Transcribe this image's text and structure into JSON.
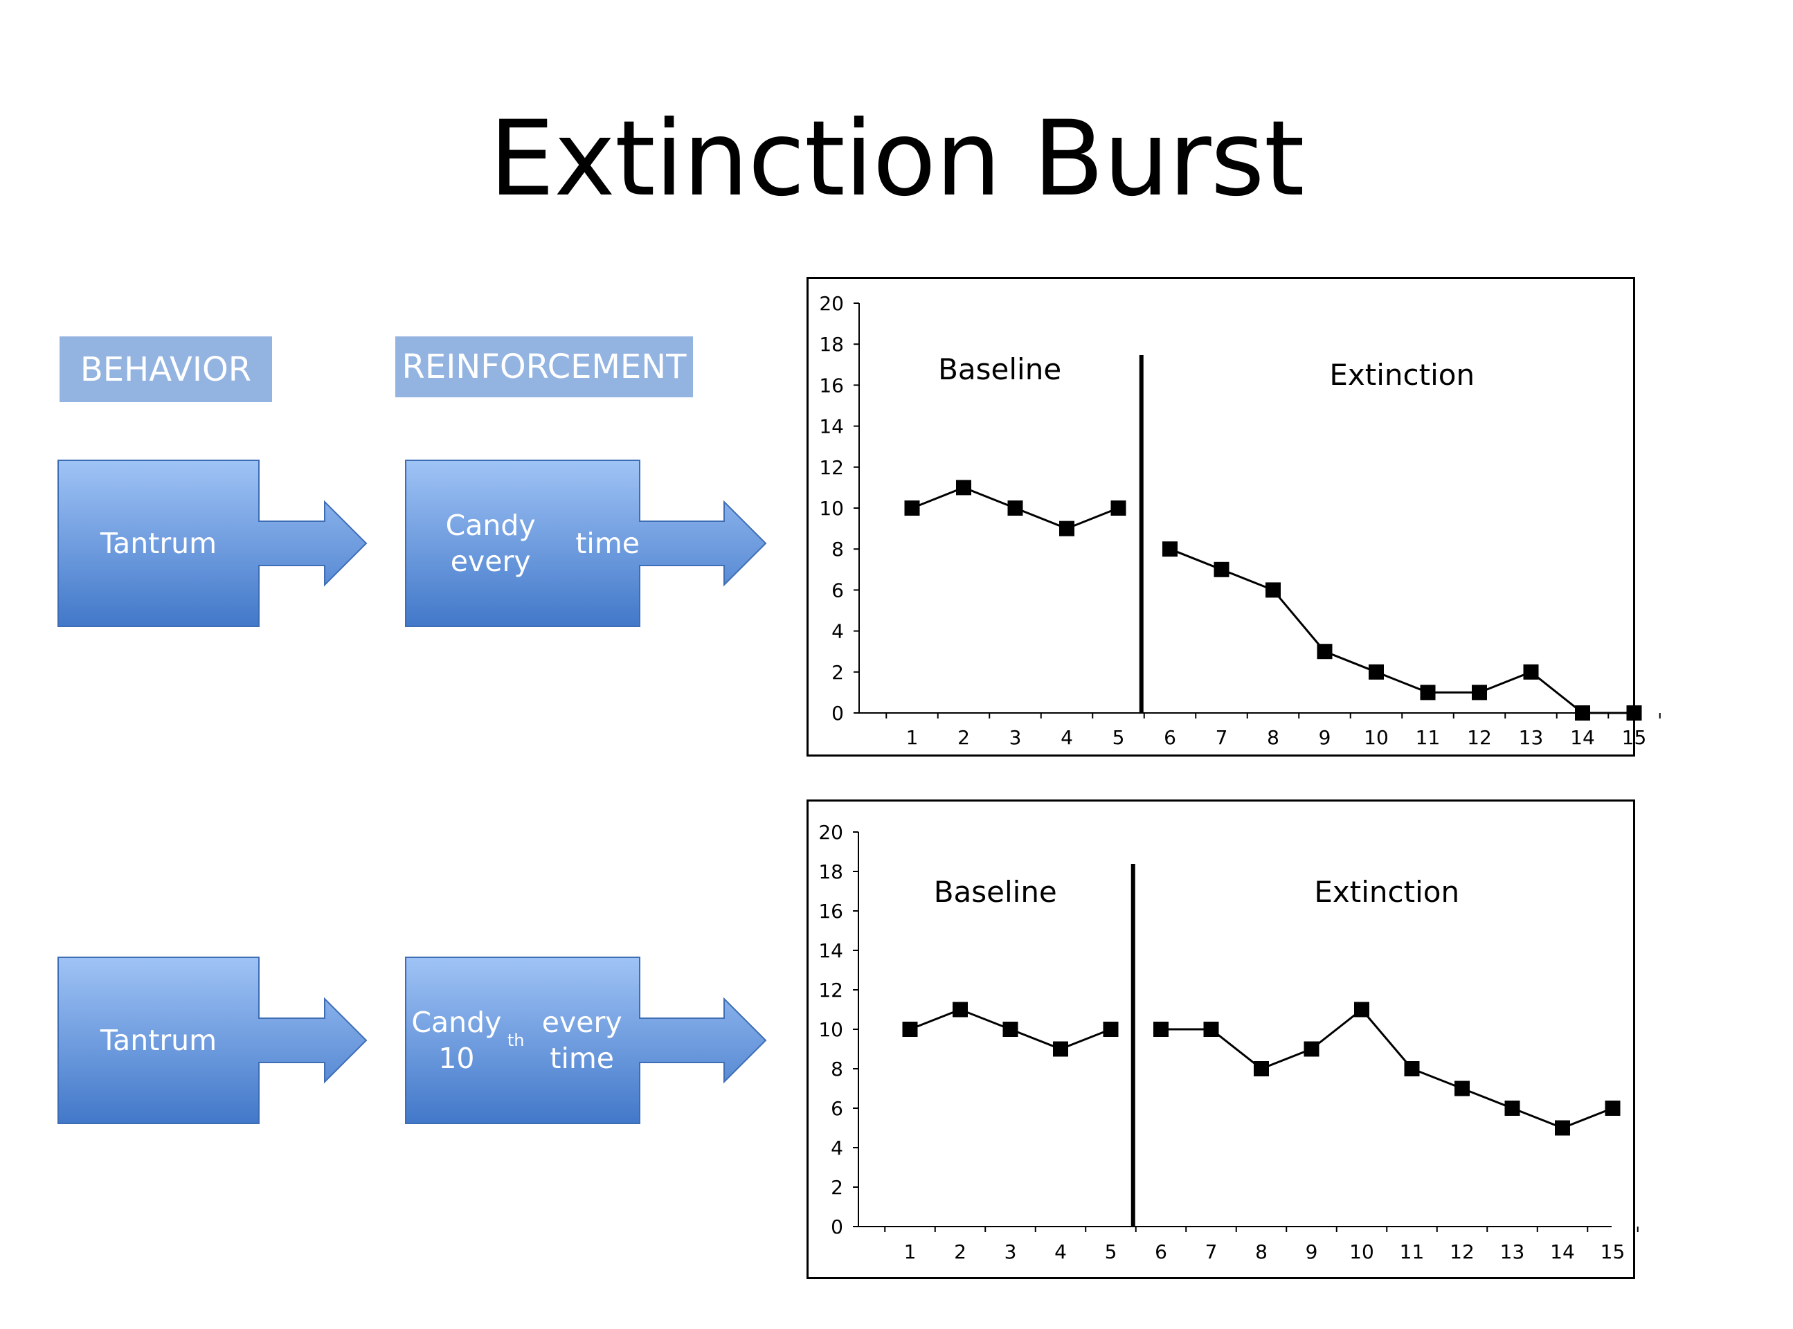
{
  "slide": {
    "title": "Extinction Burst",
    "headers": {
      "behavior": "BEHAVIOR",
      "reinforcement": "REINFORCEMENT"
    },
    "rows": [
      {
        "behavior": "Tantrum",
        "reinforcement_lines": [
          "Candy every",
          "time"
        ],
        "reinforcement_sup": ""
      },
      {
        "behavior": "Tantrum",
        "reinforcement_lines": [
          "Candy 10",
          "every time"
        ],
        "reinforcement_sup": "th"
      }
    ]
  },
  "colors": {
    "header_fill": "#93b3e1",
    "arrow_top": "#9fc3f5",
    "arrow_bottom": "#4278c9",
    "arrow_edge": "#3d6db5",
    "data_line": "#000000"
  },
  "chart_data": [
    {
      "type": "line",
      "categories": [
        "1",
        "2",
        "3",
        "4",
        "5",
        "6",
        "7",
        "8",
        "9",
        "10",
        "11",
        "12",
        "13",
        "14",
        "15"
      ],
      "phases": [
        {
          "label": "Baseline",
          "x": [
            1,
            2,
            3,
            4,
            5
          ],
          "values": [
            10,
            11,
            10,
            9,
            10
          ]
        },
        {
          "label": "Extinction",
          "x": [
            6,
            7,
            8,
            9,
            10,
            11,
            12,
            13,
            14,
            15
          ],
          "values": [
            8,
            7,
            6,
            3,
            2,
            1,
            1,
            2,
            0,
            0
          ]
        }
      ],
      "phase_change_after": 5,
      "ylim": [
        0,
        20
      ],
      "yticks": [
        0,
        2,
        4,
        6,
        8,
        10,
        12,
        14,
        16,
        18,
        20
      ],
      "marker": "square",
      "grid": false
    },
    {
      "type": "line",
      "categories": [
        "1",
        "2",
        "3",
        "4",
        "5",
        "6",
        "7",
        "8",
        "9",
        "10",
        "11",
        "12",
        "13",
        "14",
        "15"
      ],
      "phases": [
        {
          "label": "Baseline",
          "x": [
            1,
            2,
            3,
            4,
            5
          ],
          "values": [
            10,
            11,
            10,
            9,
            10
          ]
        },
        {
          "label": "Extinction",
          "x": [
            6,
            7,
            8,
            9,
            10,
            11,
            12,
            13,
            14,
            15
          ],
          "values": [
            10,
            10,
            8,
            9,
            11,
            8,
            7,
            6,
            5,
            6
          ]
        }
      ],
      "phase_change_after": 5,
      "ylim": [
        0,
        20
      ],
      "yticks": [
        0,
        2,
        4,
        6,
        8,
        10,
        12,
        14,
        16,
        18,
        20
      ],
      "marker": "square",
      "grid": false
    }
  ]
}
